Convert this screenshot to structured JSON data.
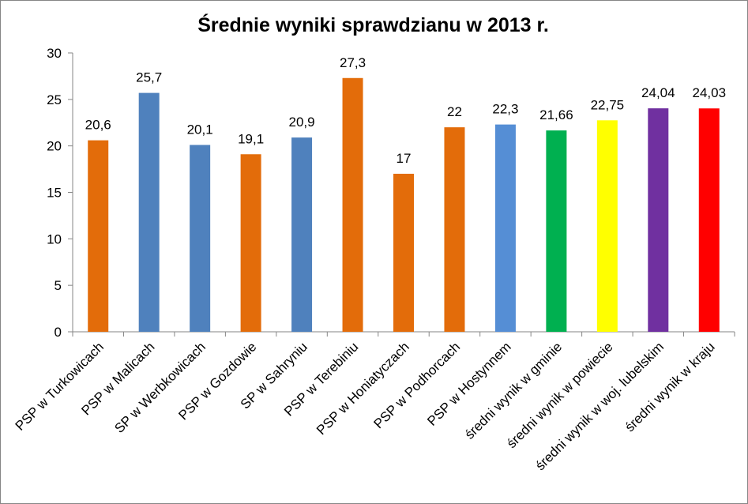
{
  "chart_data": {
    "type": "bar",
    "title": "Średnie wyniki sprawdzianu w 2013 r.",
    "xlabel": "",
    "ylabel": "",
    "ylim": [
      0,
      30
    ],
    "yticks": [
      0,
      5,
      10,
      15,
      20,
      25,
      30
    ],
    "grid": false,
    "legend": "none",
    "categories": [
      "PSP w Turkowicach",
      "PSP w Malicach",
      "SP w Werbkowicach",
      "PSP w Gozdowie",
      "SP w Sahryniu",
      "PSP w Terebiniu",
      "PSP w Honiatyczach",
      "PSP w Podhorcach",
      "PSP w Hostynnem",
      "średni wynik w gminie",
      "średni wynik w powiecie",
      "średni wynik w woj. lubelskim",
      "średni wynik w kraju"
    ],
    "values": [
      20.6,
      25.7,
      20.1,
      19.1,
      20.9,
      27.3,
      17,
      22,
      22.3,
      21.66,
      22.75,
      24.04,
      24.03
    ],
    "value_labels": [
      "20,6",
      "25,7",
      "20,1",
      "19,1",
      "20,9",
      "27,3",
      "17",
      "22",
      "22,3",
      "21,66",
      "22,75",
      "24,04",
      "24,03"
    ],
    "colors": [
      "#E36C0A",
      "#4F81BD",
      "#4F81BD",
      "#E36C0A",
      "#4F81BD",
      "#E36C0A",
      "#E36C0A",
      "#E36C0A",
      "#558ED5",
      "#00B050",
      "#FFFF00",
      "#7030A0",
      "#FF0000"
    ]
  }
}
